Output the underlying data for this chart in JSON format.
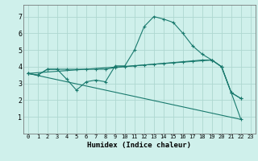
{
  "xlabel": "Humidex (Indice chaleur)",
  "bg_color": "#cff0eb",
  "grid_color": "#aed8d0",
  "line_color": "#1a7a6e",
  "xlim": [
    -0.5,
    23.5
  ],
  "ylim": [
    0,
    7.7
  ],
  "xticks": [
    0,
    1,
    2,
    3,
    4,
    5,
    6,
    7,
    8,
    9,
    10,
    11,
    12,
    13,
    14,
    15,
    16,
    17,
    18,
    19,
    20,
    21,
    22,
    23
  ],
  "yticks": [
    1,
    2,
    3,
    4,
    5,
    6,
    7
  ],
  "line1_x": [
    0,
    1,
    2,
    3,
    4,
    5,
    6,
    7,
    8,
    9,
    10,
    11,
    12,
    13,
    14,
    15,
    16,
    17,
    18,
    19,
    20,
    21,
    22
  ],
  "line1_y": [
    3.6,
    3.5,
    3.85,
    3.85,
    3.25,
    2.6,
    3.1,
    3.2,
    3.1,
    4.05,
    4.05,
    5.0,
    6.4,
    7.0,
    6.85,
    6.65,
    6.0,
    5.25,
    4.75,
    4.4,
    4.0,
    2.45,
    2.1
  ],
  "line2_x": [
    0,
    1,
    2,
    3,
    4,
    5,
    6,
    7,
    8,
    9,
    10,
    11,
    12,
    13,
    14,
    15,
    16,
    17,
    18,
    19,
    20,
    21,
    22
  ],
  "line2_y": [
    3.6,
    3.5,
    3.85,
    3.85,
    3.85,
    3.85,
    3.85,
    3.85,
    3.85,
    3.95,
    4.0,
    4.05,
    4.1,
    4.15,
    4.2,
    4.25,
    4.3,
    4.35,
    4.4,
    4.4,
    4.0,
    2.45,
    2.1
  ],
  "line3_x": [
    0,
    22
  ],
  "line3_y": [
    3.6,
    0.85
  ],
  "line4_x": [
    0,
    19,
    20,
    21,
    22
  ],
  "line4_y": [
    3.6,
    4.4,
    4.0,
    2.45,
    0.85
  ]
}
